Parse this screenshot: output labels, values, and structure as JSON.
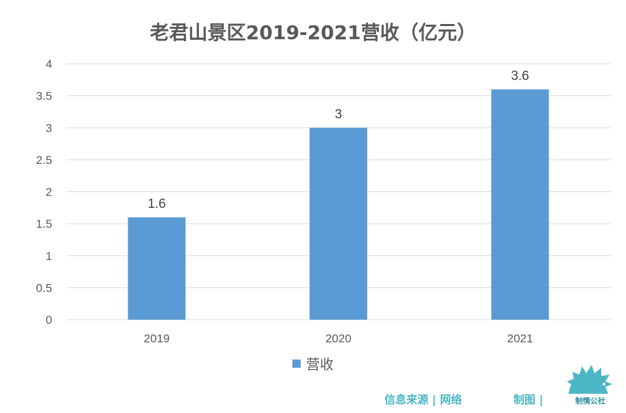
{
  "title": "老君山景区2019-2021营收（亿元）",
  "legend": {
    "label": "营收",
    "color": "#5b9bd5"
  },
  "footer": {
    "source": "信息来源 | 网络",
    "maker": "制图 |",
    "logo_text": "制情公社"
  },
  "colors": {
    "bar": "#5b9bd5",
    "grid": "#d9d9d9",
    "brand": "#4bb7c6"
  },
  "chart_data": {
    "type": "bar",
    "title": "老君山景区2019-2021营收（亿元）",
    "categories": [
      "2019",
      "2020",
      "2021"
    ],
    "series": [
      {
        "name": "营收",
        "values": [
          1.6,
          3,
          3.6
        ],
        "labels": [
          "1.6",
          "3",
          "3.6"
        ]
      }
    ],
    "ylim": [
      0,
      4
    ],
    "yticks": [
      0,
      0.5,
      1,
      1.5,
      2,
      2.5,
      3,
      3.5,
      4
    ],
    "ytick_labels": [
      "0",
      "0.5",
      "1",
      "1.5",
      "2",
      "2.5",
      "3",
      "3.5",
      "4"
    ],
    "grid": true,
    "legend_position": "bottom",
    "xlabel": "",
    "ylabel": ""
  }
}
